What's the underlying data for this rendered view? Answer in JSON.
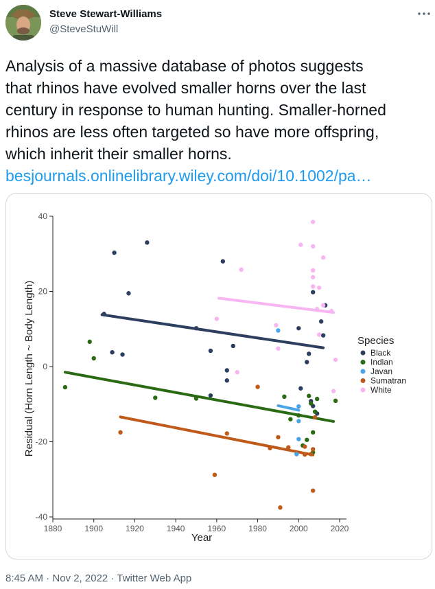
{
  "author": {
    "name": "Steve Stewart-Williams",
    "handle": "@SteveStuWill"
  },
  "icons": {
    "more": "more-horizontal-icon",
    "avatar": "profile-photo"
  },
  "tweet": {
    "lines": [
      "Analysis of a massive database of photos suggests",
      "that rhinos have evolved smaller horns over the last",
      "century in response to human hunting. Smaller-horned",
      "rhinos are less often targeted so have more offspring,",
      "which inherit their smaller horns."
    ],
    "link": "besjournals.onlinelibrary.wiley.com/doi/10.1002/pa…"
  },
  "footer": {
    "timestamp": "8:45 AM · Nov 2, 2022 · Twitter Web App"
  },
  "chart_data": {
    "type": "scatter",
    "xlabel": "Year",
    "ylabel": "Residual (Horn Length ~ Body Length)",
    "xlim": [
      1880,
      2022
    ],
    "ylim": [
      -41,
      42
    ],
    "xticks": [
      1880,
      1900,
      1920,
      1940,
      1960,
      1980,
      2000,
      2020
    ],
    "yticks": [
      40,
      20,
      0,
      -20,
      -40
    ],
    "grid": false,
    "legend_title": "Species",
    "legend_position": "right",
    "series": [
      {
        "name": "Black",
        "color": "#2d3e5e",
        "points": [
          [
            1910,
            30.3
          ],
          [
            1926,
            33
          ],
          [
            1917,
            19.5
          ],
          [
            1905,
            14
          ],
          [
            1909,
            3.8
          ],
          [
            1914,
            3.2
          ],
          [
            1950,
            10.2
          ],
          [
            1963,
            28
          ],
          [
            1965,
            -1
          ],
          [
            1965,
            -3.7
          ],
          [
            1968,
            5.5
          ],
          [
            1957,
            4.2
          ],
          [
            1957,
            -7.7
          ],
          [
            2000,
            10.2
          ],
          [
            2001,
            -5.8
          ],
          [
            2004,
            1.2
          ],
          [
            2005,
            3.4
          ],
          [
            2007,
            19.8
          ],
          [
            2009,
            -12.5
          ],
          [
            2011,
            12
          ],
          [
            2012,
            8.3
          ],
          [
            2013,
            16.3
          ],
          [
            2006,
            -9.2
          ],
          [
            2007,
            -10.5
          ]
        ],
        "trend": [
          [
            1904,
            13.8
          ],
          [
            2012,
            5
          ]
        ]
      },
      {
        "name": "Indian",
        "color": "#2a6a12",
        "points": [
          [
            1886,
            -5.5
          ],
          [
            1898,
            6.6
          ],
          [
            1900,
            2.2
          ],
          [
            1930,
            -8.3
          ],
          [
            1950,
            -8.5
          ],
          [
            1993,
            -8
          ],
          [
            1996,
            -14
          ],
          [
            2000,
            -13
          ],
          [
            2002,
            -21
          ],
          [
            2004,
            -19.5
          ],
          [
            2005,
            -7.8
          ],
          [
            2006,
            -9.8
          ],
          [
            2007,
            -17.5
          ],
          [
            2007,
            -22.8
          ],
          [
            2008,
            -12
          ],
          [
            2009,
            -8.6
          ],
          [
            2018,
            -9.1
          ]
        ],
        "trend": [
          [
            1886,
            -1.5
          ],
          [
            2017,
            -14.6
          ]
        ]
      },
      {
        "name": "Javan",
        "color": "#4aa6e8",
        "points": [
          [
            1990,
            9.6
          ],
          [
            2000,
            -10.6
          ],
          [
            2000,
            -19.3
          ],
          [
            1999,
            -23.3
          ],
          [
            2000,
            -14.5
          ]
        ],
        "trend": [
          [
            1990,
            -10.4
          ],
          [
            2000,
            -11.6
          ]
        ]
      },
      {
        "name": "Sumatran",
        "color": "#bf5a1a",
        "points": [
          [
            1913,
            -17.5
          ],
          [
            1959,
            -28.8
          ],
          [
            1965,
            -17.8
          ],
          [
            1980,
            -5.4
          ],
          [
            1986,
            -21.7
          ],
          [
            1990,
            -18.8
          ],
          [
            1995,
            -21.5
          ],
          [
            1991,
            -37.5
          ],
          [
            2003,
            -21.3
          ],
          [
            2003,
            -23.4
          ],
          [
            2006,
            -23.3
          ],
          [
            2007,
            -33
          ],
          [
            2007,
            -22
          ],
          [
            2008,
            -13.5
          ]
        ],
        "trend": [
          [
            1913,
            -13.4
          ],
          [
            2007,
            -23.5
          ]
        ]
      },
      {
        "name": "White",
        "color": "#f7b6f2",
        "points": [
          [
            1960,
            12.7
          ],
          [
            1970,
            -1.5
          ],
          [
            1972,
            25.8
          ],
          [
            1990,
            4.8
          ],
          [
            2001,
            32.4
          ],
          [
            2007,
            38.5
          ],
          [
            2007,
            32
          ],
          [
            2012,
            29
          ],
          [
            2007,
            25.6
          ],
          [
            2007,
            23.8
          ],
          [
            2007,
            21.3
          ],
          [
            2010,
            21
          ],
          [
            2009,
            15.3
          ],
          [
            2012,
            16.3
          ],
          [
            2010,
            8.5
          ],
          [
            2016,
            14.8
          ],
          [
            2018,
            1.8
          ],
          [
            2017,
            -6.5
          ],
          [
            1989,
            11
          ]
        ],
        "trend": [
          [
            1961,
            18.2
          ],
          [
            2017,
            14.4
          ]
        ]
      }
    ]
  }
}
